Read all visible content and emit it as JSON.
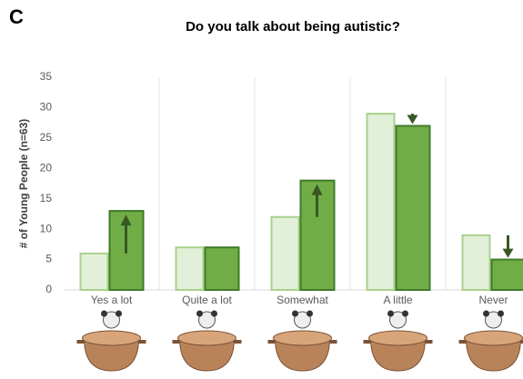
{
  "chart_data": {
    "type": "bar",
    "panel_label": "C",
    "title": "Do you talk about being autistic?",
    "y_label": "# of Young People (n=63)",
    "categories": [
      "Yes a lot",
      "Quite a lot",
      "Somewhat",
      "A little",
      "Never"
    ],
    "series": [
      {
        "color": "#e2f0d9",
        "edge": "#a9d18e",
        "values": [
          6,
          7,
          12,
          29,
          9
        ]
      },
      {
        "color": "#70ad47",
        "edge": "#3f7a28",
        "values": [
          13,
          7,
          18,
          27,
          5
        ]
      }
    ],
    "ylim": [
      0,
      35
    ],
    "yticks": [
      0,
      5,
      10,
      15,
      20,
      25,
      30,
      35
    ],
    "grid": false
  }
}
